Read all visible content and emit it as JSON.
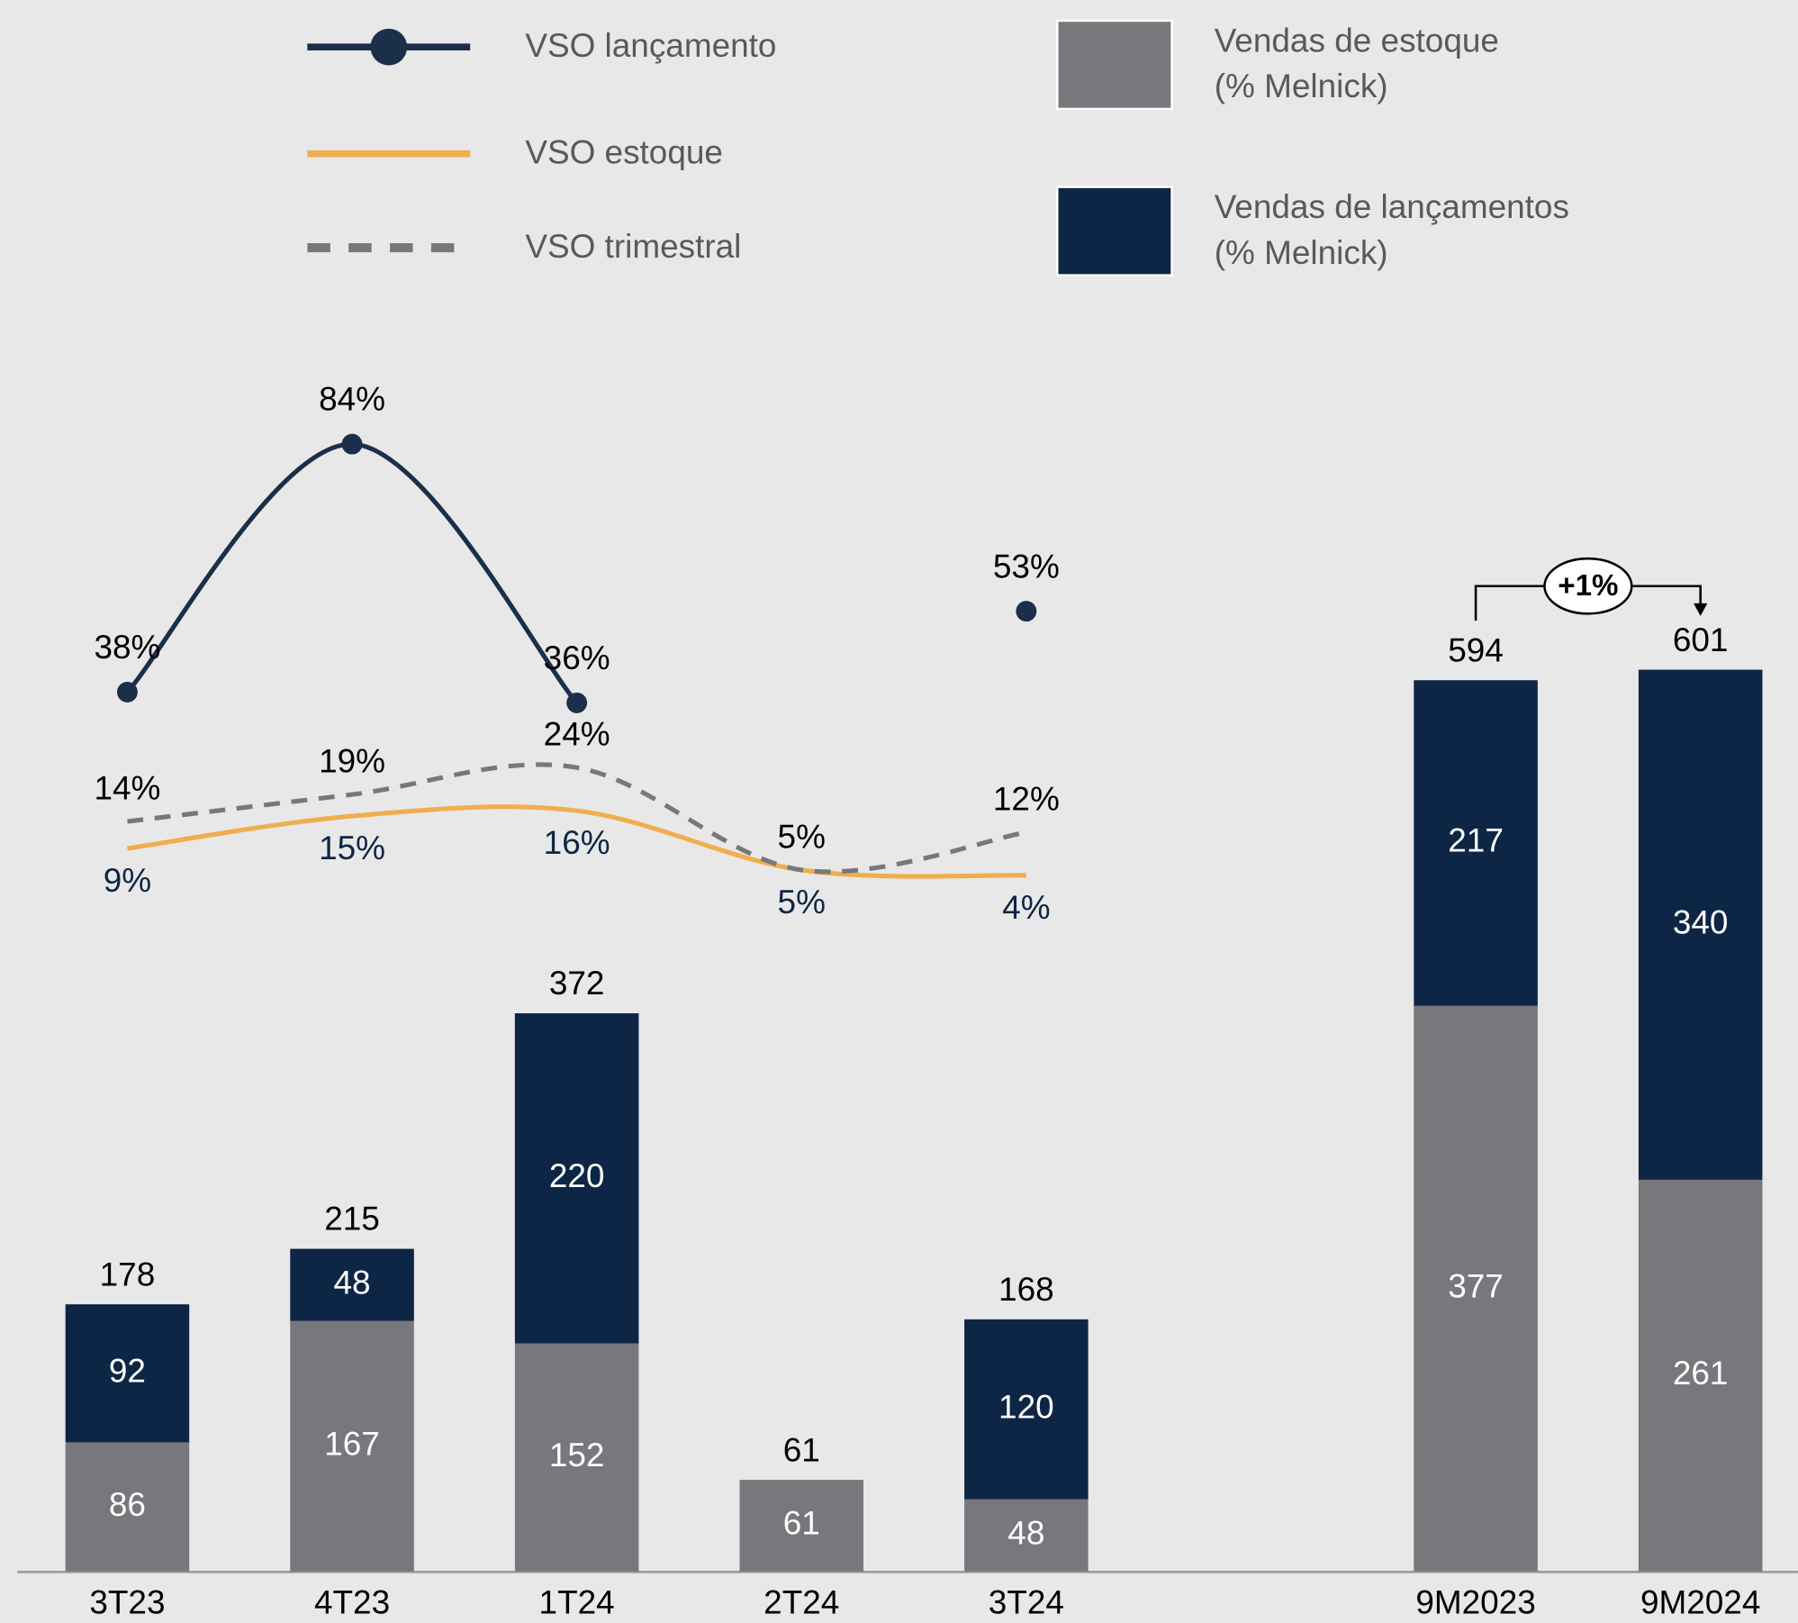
{
  "chart_data": {
    "type": "bar",
    "categories": [
      "3T23",
      "4T23",
      "1T24",
      "2T24",
      "3T24",
      null,
      "9M2023",
      "9M2024"
    ],
    "series": [
      {
        "name": "Vendas de estoque\n(% Melnick)",
        "color": "#77787b",
        "values": [
          86,
          167,
          152,
          61,
          48,
          null,
          377,
          261
        ]
      },
      {
        "name": "Vendas de lançamentos\n(% Melnick)",
        "color": "#0e2645",
        "values": [
          92,
          48,
          220,
          null,
          120,
          null,
          217,
          340
        ]
      }
    ],
    "totals": [
      178,
      215,
      372,
      61,
      168,
      null,
      594,
      601
    ],
    "lines": [
      {
        "name": "VSO lançamento",
        "type": "line",
        "color": "#1b2f4b",
        "style": "solid",
        "marker": true,
        "values": [
          38,
          84,
          36,
          null,
          53,
          null,
          null,
          null
        ],
        "value_labels": [
          "38%",
          "84%",
          "36%",
          null,
          "53%",
          null,
          null,
          null
        ]
      },
      {
        "name": "VSO estoque",
        "type": "line",
        "color": "#f0ae4f",
        "style": "solid",
        "marker": false,
        "values": [
          9,
          15,
          16,
          5,
          4,
          null,
          null,
          null
        ],
        "value_labels": [
          "9%",
          "15%",
          "16%",
          "5%",
          "4%",
          null,
          null,
          null
        ]
      },
      {
        "name": "VSO trimestral",
        "type": "line",
        "color": "#77787b",
        "style": "dashed",
        "marker": false,
        "values": [
          14,
          19,
          24,
          5,
          12,
          null,
          null,
          null
        ],
        "value_labels": [
          "14%",
          "19%",
          "24%",
          "5%",
          "12%",
          null,
          null,
          null
        ]
      }
    ],
    "annotation": "+1%"
  }
}
